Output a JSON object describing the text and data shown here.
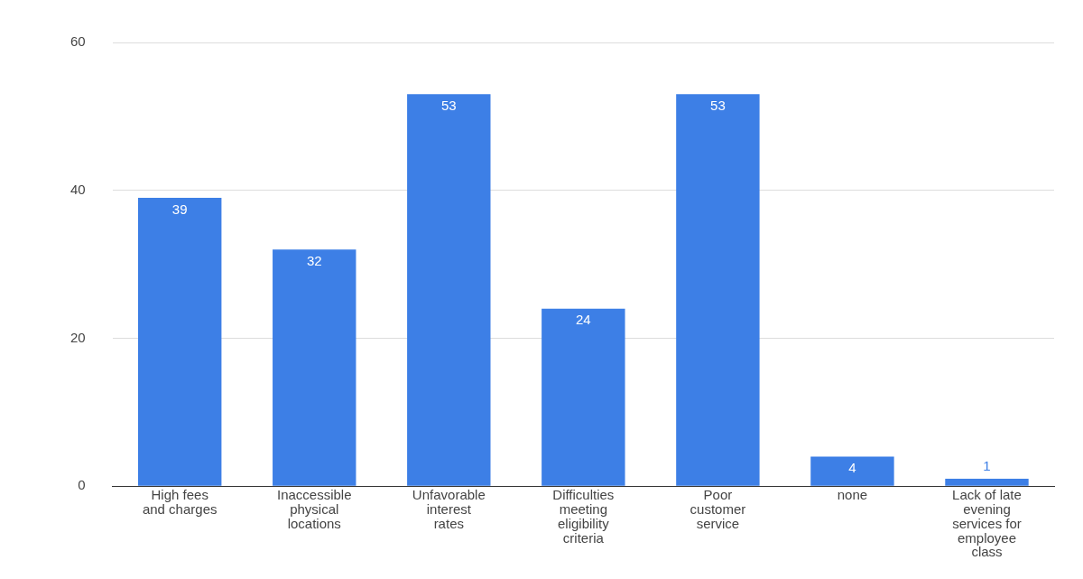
{
  "chart_data": {
    "type": "bar",
    "categories": [
      "High fees and charges",
      "Inaccessible physical locations",
      "Unfavorable interest rates",
      "Difficulties meeting eligibility criteria",
      "Poor customer service",
      "none",
      "Lack of late evening services for employee class"
    ],
    "values": [
      39,
      32,
      53,
      24,
      53,
      4,
      1
    ],
    "color": "#3d7fe6",
    "ylim": [
      0,
      60
    ],
    "yticks": [
      0,
      20,
      40,
      60
    ],
    "grid": "y",
    "data_labels": true
  }
}
